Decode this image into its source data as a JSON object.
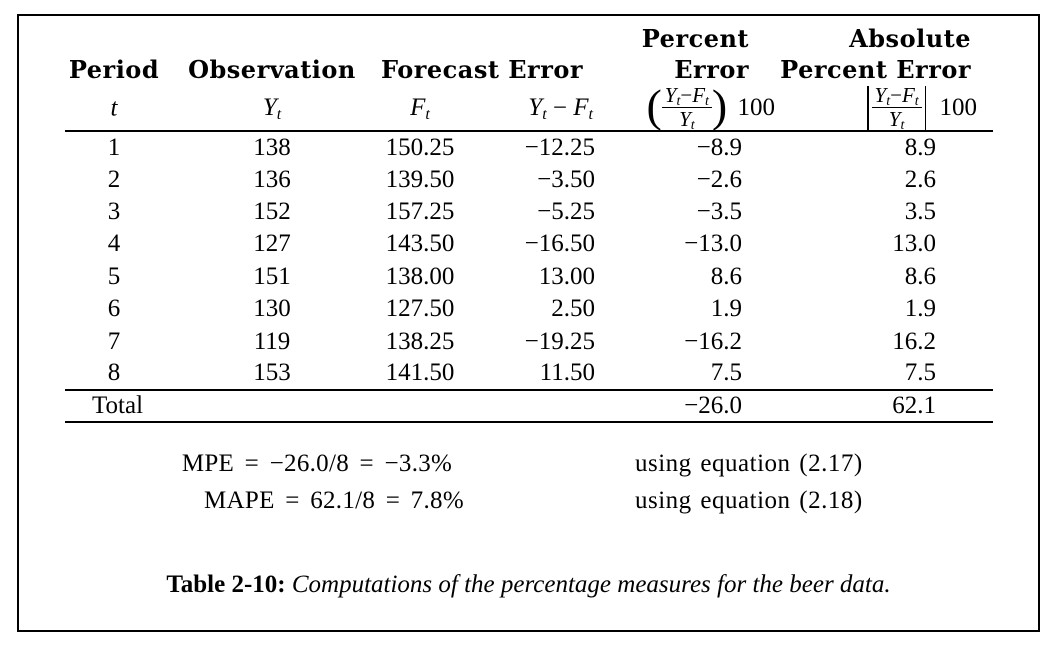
{
  "table": {
    "columns": [
      {
        "h1": "",
        "h2": "Period"
      },
      {
        "h1": "",
        "h2": "Observation"
      },
      {
        "h1": "",
        "h2": "Forecast"
      },
      {
        "h1": "",
        "h2": "Error"
      },
      {
        "h1": "Percent",
        "h2": "Error"
      },
      {
        "h1": "Absolute",
        "h2": "Percent Error"
      }
    ],
    "math_row": {
      "period": [
        {
          "t": "t",
          "it": true
        }
      ],
      "observation": [
        {
          "t": "Y",
          "it": true,
          "sub": "t"
        }
      ],
      "forecast": [
        {
          "t": "F",
          "it": true,
          "sub": "t"
        }
      ],
      "error": [
        {
          "t": "Y",
          "it": true,
          "sub": "t"
        },
        {
          "t": " − "
        },
        {
          "t": "F",
          "it": true,
          "sub": "t"
        }
      ],
      "percent_error": [
        {
          "d": "("
        },
        {
          "frac": {
            "num": [
              {
                "t": "Y",
                "it": true,
                "sub": "t"
              },
              {
                "t": "−"
              },
              {
                "t": "F",
                "it": true,
                "sub": "t"
              }
            ],
            "den": [
              {
                "t": "Y",
                "it": true,
                "sub": "t"
              }
            ]
          }
        },
        {
          "d": ")"
        },
        {
          "t": " 100",
          "cls": "x100"
        }
      ],
      "abs_percent_error": [
        {
          "bar": true
        },
        {
          "frac": {
            "num": [
              {
                "t": "Y",
                "it": true,
                "sub": "t"
              },
              {
                "t": "−"
              },
              {
                "t": "F",
                "it": true,
                "sub": "t"
              }
            ],
            "den": [
              {
                "t": "Y",
                "it": true,
                "sub": "t"
              }
            ]
          }
        },
        {
          "bar": true
        },
        {
          "t": " 100",
          "cls": "x100"
        }
      ]
    },
    "rows": [
      [
        "1",
        "138",
        "150.25",
        "−12.25",
        "−8.9",
        "8.9"
      ],
      [
        "2",
        "136",
        "139.50",
        "−3.50",
        "−2.6",
        "2.6"
      ],
      [
        "3",
        "152",
        "157.25",
        "−5.25",
        "−3.5",
        "3.5"
      ],
      [
        "4",
        "127",
        "143.50",
        "−16.50",
        "−13.0",
        "13.0"
      ],
      [
        "5",
        "151",
        "138.00",
        "13.00",
        "8.6",
        "8.6"
      ],
      [
        "6",
        "130",
        "127.50",
        "2.50",
        "1.9",
        "1.9"
      ],
      [
        "7",
        "119",
        "138.25",
        "−19.25",
        "−16.2",
        "16.2"
      ],
      [
        "8",
        "153",
        "141.50",
        "11.50",
        "7.5",
        "7.5"
      ]
    ],
    "total_row": {
      "label": "Total",
      "percent_error": "−26.0",
      "abs_percent_error": "62.1"
    }
  },
  "formulas": [
    {
      "equation": "MPE = −26.0/8 = −3.3%",
      "note": "using equation (2.17)"
    },
    {
      "equation": "MAPE = 62.1/8 = 7.8%",
      "note": "using equation (2.18)"
    }
  ],
  "caption": {
    "label": "Table 2-10",
    "separator": ": ",
    "text": "Computations of the percentage measures for the beer data."
  }
}
